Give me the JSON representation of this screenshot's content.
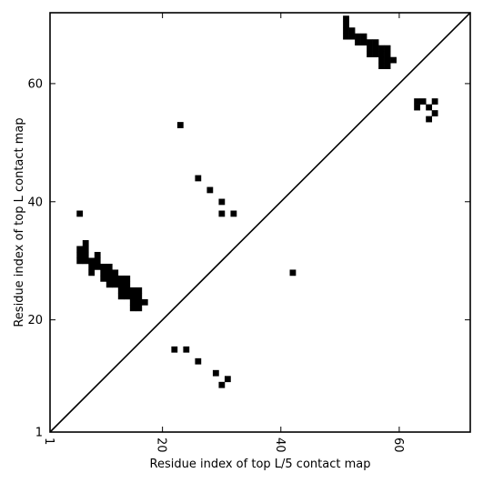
{
  "chart_data": {
    "type": "heatmap",
    "title": "",
    "xlabel": "Residue index of top L/5 contact map",
    "ylabel": "Residue index of top L contact map",
    "xlim": [
      1,
      72
    ],
    "ylim": [
      1,
      72
    ],
    "xticks": [
      "1",
      "20",
      "40",
      "60"
    ],
    "yticks": [
      "1",
      "20",
      "40",
      "60"
    ],
    "xtick_values": [
      1,
      20,
      40,
      60
    ],
    "ytick_values": [
      1,
      20,
      40,
      60
    ],
    "diagonal_line": true,
    "grid": false,
    "contact_color": "#000000",
    "upper_left_contacts_top_L": [
      [
        6,
        38
      ],
      [
        6,
        32
      ],
      [
        7,
        32
      ],
      [
        6,
        31
      ],
      [
        7,
        31
      ],
      [
        6,
        30
      ],
      [
        7,
        30
      ],
      [
        7,
        33
      ],
      [
        8,
        30
      ],
      [
        8,
        29
      ],
      [
        8,
        28
      ],
      [
        9,
        31
      ],
      [
        9,
        30
      ],
      [
        9,
        29
      ],
      [
        10,
        29
      ],
      [
        10,
        28
      ],
      [
        10,
        27
      ],
      [
        11,
        29
      ],
      [
        11,
        28
      ],
      [
        11,
        27
      ],
      [
        11,
        26
      ],
      [
        12,
        28
      ],
      [
        12,
        27
      ],
      [
        12,
        26
      ],
      [
        13,
        27
      ],
      [
        13,
        26
      ],
      [
        13,
        25
      ],
      [
        13,
        24
      ],
      [
        14,
        27
      ],
      [
        14,
        26
      ],
      [
        14,
        25
      ],
      [
        14,
        24
      ],
      [
        15,
        25
      ],
      [
        15,
        24
      ],
      [
        15,
        23
      ],
      [
        15,
        22
      ],
      [
        16,
        25
      ],
      [
        16,
        24
      ],
      [
        16,
        23
      ],
      [
        16,
        22
      ],
      [
        17,
        23
      ],
      [
        23,
        53
      ],
      [
        26,
        44
      ],
      [
        28,
        42
      ],
      [
        30,
        40
      ],
      [
        30,
        38
      ],
      [
        32,
        38
      ],
      [
        42,
        28
      ],
      [
        51,
        71
      ],
      [
        51,
        70
      ],
      [
        51,
        69
      ],
      [
        51,
        68
      ],
      [
        52,
        69
      ],
      [
        52,
        68
      ],
      [
        53,
        68
      ],
      [
        53,
        67
      ],
      [
        54,
        68
      ],
      [
        54,
        67
      ],
      [
        55,
        67
      ],
      [
        55,
        66
      ],
      [
        55,
        65
      ],
      [
        56,
        67
      ],
      [
        56,
        66
      ],
      [
        56,
        65
      ],
      [
        57,
        66
      ],
      [
        57,
        65
      ],
      [
        57,
        64
      ],
      [
        57,
        63
      ],
      [
        58,
        66
      ],
      [
        58,
        65
      ],
      [
        58,
        64
      ],
      [
        58,
        63
      ],
      [
        59,
        64
      ],
      [
        63,
        57
      ],
      [
        63,
        56
      ],
      [
        64,
        57
      ],
      [
        65,
        56
      ],
      [
        65,
        54
      ],
      [
        66,
        57
      ],
      [
        66,
        55
      ]
    ],
    "lower_right_contacts_top_L5": [
      [
        22,
        15
      ],
      [
        24,
        15
      ],
      [
        26,
        13
      ],
      [
        29,
        11
      ],
      [
        31,
        10
      ],
      [
        30,
        9
      ]
    ]
  }
}
